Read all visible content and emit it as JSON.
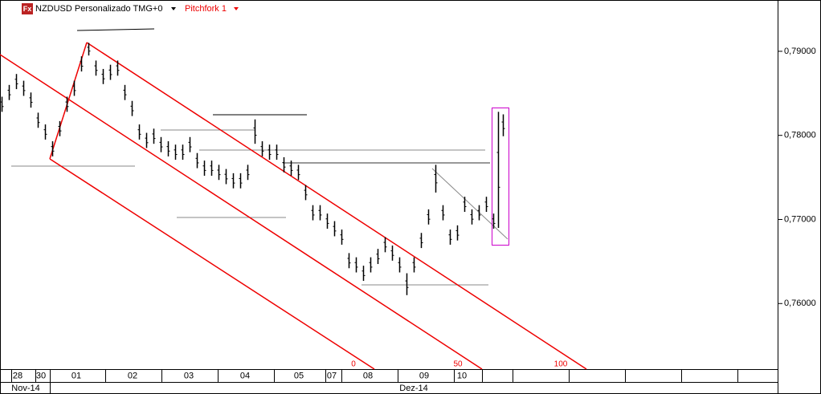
{
  "chart_data": {
    "type": "ohlc",
    "title": "NZDUSD Personalizado TMG+0",
    "icon": "Fx",
    "pitchfork": {
      "name": "Pitchfork 1",
      "levels": [
        0,
        50,
        100
      ]
    },
    "color": "#000000",
    "ylim": [
      0.7522,
      0.7961
    ],
    "yticks": [
      {
        "value": 0.76,
        "label": "0,76000"
      },
      {
        "value": 0.77,
        "label": "0,77000"
      },
      {
        "value": 0.78,
        "label": "0,78000"
      },
      {
        "value": 0.79,
        "label": "0,79000"
      }
    ],
    "days": [
      "28",
      "30",
      "01",
      "02",
      "03",
      "04",
      "05",
      "07",
      "08",
      "09",
      "10"
    ],
    "months": [
      "Nov-14",
      "Dez-14"
    ],
    "high": [
      0.7846,
      0.786,
      0.7873,
      0.7865,
      0.7851,
      0.7827,
      0.7813,
      0.7793,
      0.7817,
      0.7846,
      0.7865,
      0.7894,
      0.791,
      0.7889,
      0.7879,
      0.7884,
      0.7889,
      0.786,
      0.7841,
      0.7813,
      0.7803,
      0.7808,
      0.7798,
      0.7793,
      0.7789,
      0.7789,
      0.7798,
      0.7779,
      0.777,
      0.777,
      0.7765,
      0.776,
      0.7755,
      0.7755,
      0.7765,
      0.7819,
      0.7793,
      0.7789,
      0.7789,
      0.7774,
      0.777,
      0.7765,
      0.7741,
      0.7717,
      0.7717,
      0.7707,
      0.7698,
      0.7688,
      0.766,
      0.7655,
      0.7645,
      0.7655,
      0.7665,
      0.7679,
      0.7669,
      0.7655,
      0.7636,
      0.7655,
      0.7684,
      0.7712,
      0.7765,
      0.7717,
      0.7688,
      0.7693,
      0.7727,
      0.7712,
      0.7717,
      0.7727,
      0.7707,
      0.7828,
      0.7825
    ],
    "low": [
      0.7828,
      0.7842,
      0.7855,
      0.7847,
      0.7833,
      0.7809,
      0.7795,
      0.7775,
      0.7799,
      0.7828,
      0.7847,
      0.7876,
      0.7895,
      0.7871,
      0.7861,
      0.7866,
      0.7871,
      0.7842,
      0.7823,
      0.7795,
      0.7785,
      0.779,
      0.778,
      0.7775,
      0.7771,
      0.7771,
      0.778,
      0.7761,
      0.7752,
      0.7752,
      0.7747,
      0.7742,
      0.7737,
      0.7737,
      0.7747,
      0.779,
      0.7775,
      0.7771,
      0.7771,
      0.7756,
      0.7752,
      0.7747,
      0.7723,
      0.7699,
      0.7699,
      0.7689,
      0.768,
      0.767,
      0.7642,
      0.7637,
      0.7627,
      0.7637,
      0.7647,
      0.7661,
      0.7651,
      0.7637,
      0.761,
      0.7637,
      0.7666,
      0.7694,
      0.7732,
      0.7699,
      0.767,
      0.7675,
      0.7709,
      0.7694,
      0.7699,
      0.7709,
      0.7689,
      0.769,
      0.7799
    ]
  }
}
